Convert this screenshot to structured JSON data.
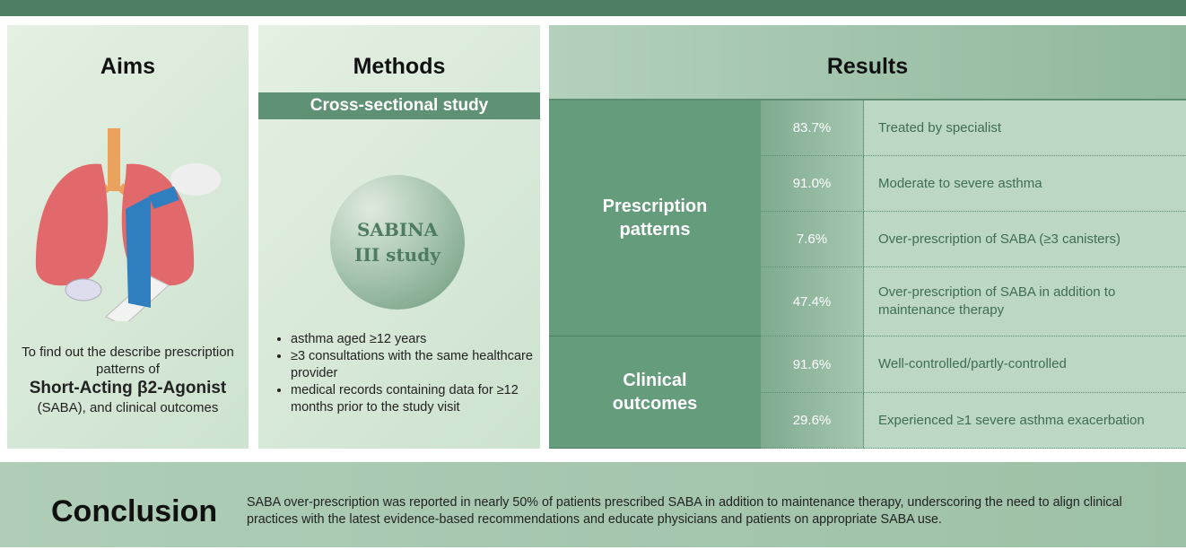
{
  "aims": {
    "title": "Aims",
    "text": "To find out the describe prescription patterns of",
    "bold": "Short-Acting β2-Agonist",
    "text_end": "(SABA), and clinical outcomes"
  },
  "methods": {
    "title": "Methods",
    "banner": "Cross-sectional study",
    "circle": [
      "SABINA",
      "III study"
    ],
    "bullets": [
      "asthma aged ≥12 years",
      "≥3 consultations with the same healthcare provider",
      "medical records containing data for ≥12 months prior to the study visit"
    ]
  },
  "results": {
    "title": "Results",
    "groups": [
      {
        "name": "Prescription patterns",
        "rows": [
          {
            "value": "83.7%",
            "label": "Treated by specialist"
          },
          {
            "value": "91.0%",
            "label": "Moderate to severe asthma"
          },
          {
            "value": "7.6%",
            "label": "Over-prescription of SABA (≥3 canisters)"
          },
          {
            "value": "47.4%",
            "label": "Over-prescription of SABA in addition to maintenance therapy"
          }
        ]
      },
      {
        "name": "Clinical outcomes",
        "rows": [
          {
            "value": "91.6%",
            "label": "Well-controlled/partly-controlled"
          },
          {
            "value": "29.6%",
            "label": "Experienced ≥1 severe asthma exacerbation"
          }
        ]
      }
    ]
  },
  "conclusion": {
    "title": "Conclusion",
    "text": "SABA over-prescription was reported in nearly 50% of patients prescribed SABA in addition to maintenance therapy, underscoring the need to align clinical practices with the latest evidence-based recommendations and educate physicians and patients on appropriate SABA use."
  }
}
